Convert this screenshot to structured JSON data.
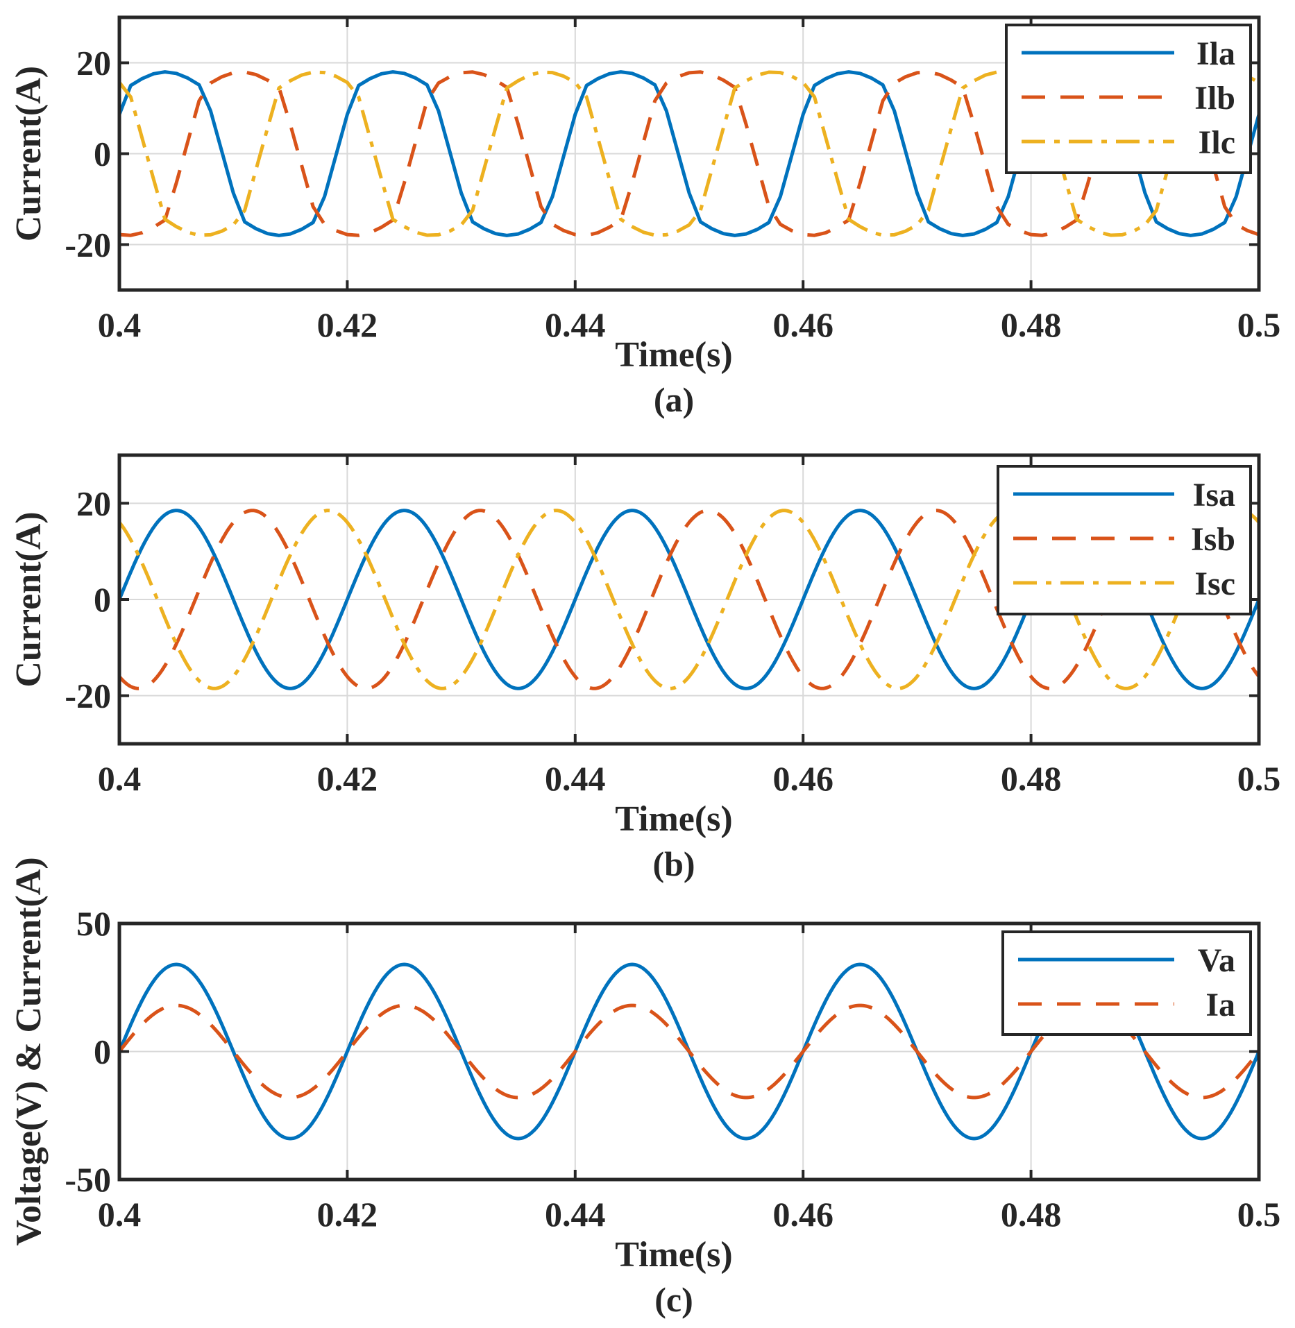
{
  "colors": {
    "blue": "#0072BD",
    "orange": "#D95319",
    "yellow": "#EDB120",
    "grid": "#D9D9D9",
    "axis": "#262626"
  },
  "chart_data": [
    {
      "type": "line",
      "caption": "(a)",
      "xlabel": "Time(s)",
      "ylabel": "Current(A)",
      "xlim": [
        0.4,
        0.5
      ],
      "ylim": [
        -30,
        30
      ],
      "xticks": [
        0.4,
        0.42,
        0.44,
        0.46,
        0.48,
        0.5
      ],
      "xtick_labels": [
        "0.4",
        "0.42",
        "0.44",
        "0.46",
        "0.48",
        "0.5"
      ],
      "yticks": [
        -20,
        0,
        20
      ],
      "ytick_labels": [
        "-20",
        "0",
        "20"
      ],
      "grid": true,
      "legend_position": "top-right",
      "frequency_hz": 50,
      "waveform": "non-sinusoidal load current (sampled every 0.001 s)",
      "series": [
        {
          "name": "Ila",
          "color": "blue",
          "style": "solid",
          "amplitude": 18,
          "phase_deg": 0
        },
        {
          "name": "Ilb",
          "color": "orange",
          "style": "dashed",
          "amplitude": 18,
          "phase_deg": -120
        },
        {
          "name": "Ilc",
          "color": "yellow",
          "style": "dashdot",
          "amplitude": 18,
          "phase_deg": 120
        }
      ]
    },
    {
      "type": "line",
      "caption": "(b)",
      "xlabel": "Time(s)",
      "ylabel": "Current(A)",
      "xlim": [
        0.4,
        0.5
      ],
      "ylim": [
        -30,
        30
      ],
      "xticks": [
        0.4,
        0.42,
        0.44,
        0.46,
        0.48,
        0.5
      ],
      "xtick_labels": [
        "0.4",
        "0.42",
        "0.44",
        "0.46",
        "0.48",
        "0.5"
      ],
      "yticks": [
        -20,
        0,
        20
      ],
      "ytick_labels": [
        "-20",
        "0",
        "20"
      ],
      "grid": true,
      "legend_position": "top-right",
      "frequency_hz": 50,
      "waveform": "sinusoidal source current",
      "series": [
        {
          "name": "Isa",
          "color": "blue",
          "style": "solid",
          "amplitude": 18.5,
          "phase_deg": 0
        },
        {
          "name": "Isb",
          "color": "orange",
          "style": "dashed",
          "amplitude": 18.5,
          "phase_deg": -120
        },
        {
          "name": "Isc",
          "color": "yellow",
          "style": "dashdot",
          "amplitude": 18.5,
          "phase_deg": 120
        }
      ]
    },
    {
      "type": "line",
      "caption": "(c)",
      "xlabel": "Time(s)",
      "ylabel": "Voltage(V) & Current(A)",
      "xlim": [
        0.4,
        0.5
      ],
      "ylim": [
        -50,
        50
      ],
      "xticks": [
        0.4,
        0.42,
        0.44,
        0.46,
        0.48,
        0.5
      ],
      "xtick_labels": [
        "0.4",
        "0.42",
        "0.44",
        "0.46",
        "0.48",
        "0.5"
      ],
      "yticks": [
        -50,
        0,
        50
      ],
      "ytick_labels": [
        "-50",
        "0",
        "50"
      ],
      "grid": true,
      "legend_position": "top-right",
      "frequency_hz": 50,
      "waveform": "in-phase source voltage and current",
      "series": [
        {
          "name": "Va",
          "color": "blue",
          "style": "solid",
          "amplitude": 34,
          "phase_deg": 0
        },
        {
          "name": "Ia",
          "color": "orange",
          "style": "dashed",
          "amplitude": 18,
          "phase_deg": 0
        }
      ]
    }
  ]
}
